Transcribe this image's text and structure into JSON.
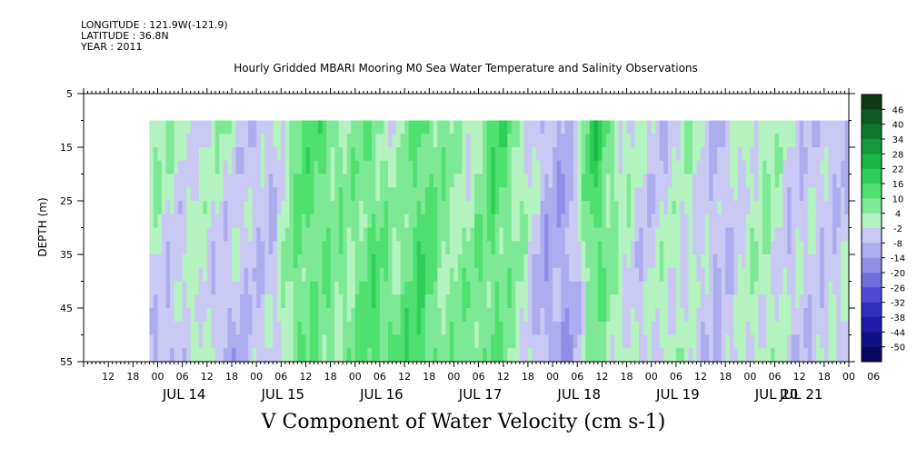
{
  "header": {
    "longitude": "LONGITUDE : 121.9W(-121.9)",
    "latitude": "LATITUDE : 36.8N",
    "year": "YEAR : 2011",
    "title": "Hourly Gridded MBARI Mooring M0 Sea Water Temperature and Salinity Observations"
  },
  "chart_data": {
    "type": "heatmap",
    "title": "Hourly Gridded MBARI Mooring M0 Sea Water Temperature and Salinity Observations",
    "xlabel": "V Component of Water Velocity (cm s-1)",
    "ylabel": "DEPTH (m)",
    "x_hours_from": -12,
    "xlim_hours": [
      -12,
      174
    ],
    "data_start_hour": 4,
    "data_end_hour": 174,
    "ylim": [
      5,
      55
    ],
    "y_inverted": true,
    "depth_data_range": [
      10,
      55
    ],
    "y_ticks": [
      "5",
      "15",
      "25",
      "35",
      "45",
      "55"
    ],
    "x_hour_ticks": [
      "12",
      "18",
      "00",
      "06",
      "12",
      "18",
      "00",
      "06",
      "12",
      "18",
      "00",
      "06",
      "12",
      "18",
      "00",
      "06",
      "12",
      "18",
      "00",
      "06",
      "12",
      "18",
      "00",
      "06",
      "12",
      "18",
      "00",
      "06",
      "12",
      "18",
      "00",
      "06"
    ],
    "x_day_labels": [
      "JUL 14",
      "JUL 15",
      "JUL 16",
      "JUL 17",
      "JUL 18",
      "JUL 19",
      "JUL 20",
      "JUL 21"
    ],
    "colorbar": {
      "levels": [
        "46",
        "40",
        "34",
        "28",
        "22",
        "16",
        "10",
        "4",
        "-2",
        "-8",
        "-14",
        "-20",
        "-26",
        "-32",
        "-38",
        "-44",
        "-50"
      ],
      "palette": [
        "#0b3a14",
        "#0e5a22",
        "#0f7a2e",
        "#139a3a",
        "#1bb646",
        "#2ecf58",
        "#4fe070",
        "#7ee995",
        "#b4f2bf",
        "#c9c9f4",
        "#acacef",
        "#8f8fe8",
        "#6f6fdf",
        "#4d4dd4",
        "#2f2fc2",
        "#1c1ca6",
        "#101085",
        "#080860"
      ]
    },
    "v_component_profile": {
      "hours": [
        4,
        10,
        16,
        22,
        28,
        34,
        40,
        46,
        52,
        58,
        64,
        70,
        76,
        82,
        88,
        94,
        100,
        106,
        112,
        118,
        124,
        130,
        136,
        142,
        148,
        154,
        160,
        166,
        172
      ],
      "surface_values": [
        6,
        2,
        -4,
        4,
        -6,
        -6,
        10,
        12,
        4,
        8,
        -2,
        12,
        6,
        -2,
        16,
        4,
        -8,
        -10,
        20,
        2,
        -4,
        -6,
        2,
        -8,
        -2,
        4,
        -4,
        -6,
        -8
      ],
      "bottom_values": [
        -6,
        -10,
        4,
        -12,
        -6,
        -6,
        10,
        6,
        6,
        14,
        12,
        16,
        4,
        10,
        8,
        2,
        -12,
        -14,
        6,
        2,
        -6,
        4,
        -4,
        -8,
        -2,
        2,
        -6,
        -4,
        -2
      ]
    }
  }
}
